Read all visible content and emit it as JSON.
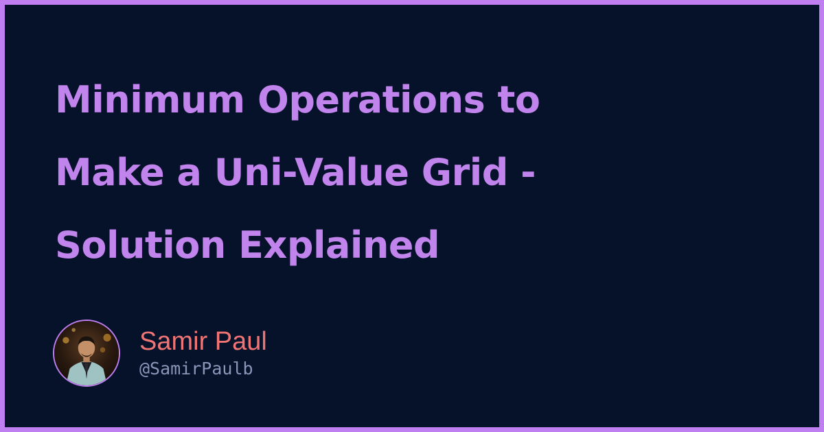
{
  "title": {
    "lines": [
      "Minimum Operations to",
      "Make a Uni-Value Grid -",
      "Solution Explained"
    ]
  },
  "author": {
    "name": "Samir Paul",
    "handle": "@SamirPaulb",
    "avatar_icon": "person-avatar"
  },
  "colors": {
    "background": "#06122a",
    "border": "#c07ff0",
    "title": "#c084ec",
    "name": "#f07474",
    "handle": "#8a96b8"
  }
}
